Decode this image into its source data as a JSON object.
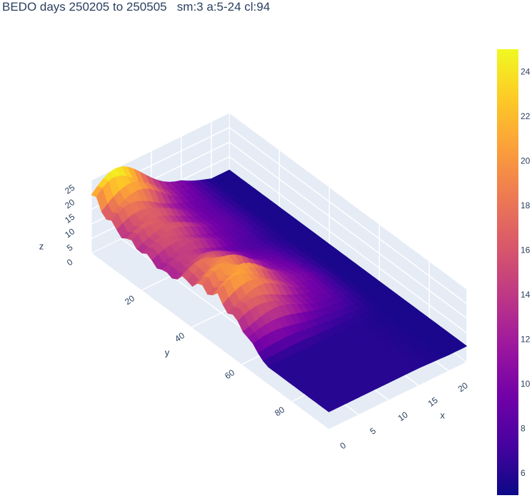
{
  "chart_data": {
    "type": "surface",
    "title": "BEDO days 250205 to 250505   sm:3 a:5-24 cl:94",
    "x_axis": {
      "label": "x",
      "range": [
        0,
        23
      ],
      "ticks": [
        "0",
        "5",
        "10",
        "15",
        "20"
      ]
    },
    "y_axis": {
      "label": "y",
      "range": [
        0,
        95
      ],
      "ticks": [
        "20",
        "40",
        "60",
        "80"
      ]
    },
    "z_axis": {
      "label": "z",
      "range": [
        0,
        25
      ],
      "ticks": [
        "0",
        "5",
        "10",
        "15",
        "20",
        "25"
      ]
    },
    "colorbar": {
      "range": [
        5,
        25
      ],
      "ticks": [
        "6",
        "8",
        "10",
        "12",
        "14",
        "16",
        "18",
        "20",
        "22",
        "24"
      ],
      "colorscale": [
        "#0d0887",
        "#46039f",
        "#7201a8",
        "#9c179e",
        "#bd3786",
        "#d8576b",
        "#ed7953",
        "#fb9f3a",
        "#fdca26",
        "#f0f921"
      ]
    },
    "surface_rows": [
      {
        "y": 0,
        "peak": 25,
        "base": 9
      },
      {
        "y": 10,
        "peak": 17,
        "base": 8
      },
      {
        "y": 20,
        "peak": 16,
        "base": 8
      },
      {
        "y": 30,
        "peak": 14,
        "base": 7
      },
      {
        "y": 40,
        "peak": 19,
        "base": 8
      },
      {
        "y": 50,
        "peak": 21,
        "base": 9
      },
      {
        "y": 60,
        "peak": 15,
        "base": 8
      },
      {
        "y": 70,
        "peak": 6,
        "base": 6
      },
      {
        "y": 80,
        "peak": 6,
        "base": 6
      },
      {
        "y": 95,
        "peak": 6,
        "base": 6
      }
    ]
  }
}
